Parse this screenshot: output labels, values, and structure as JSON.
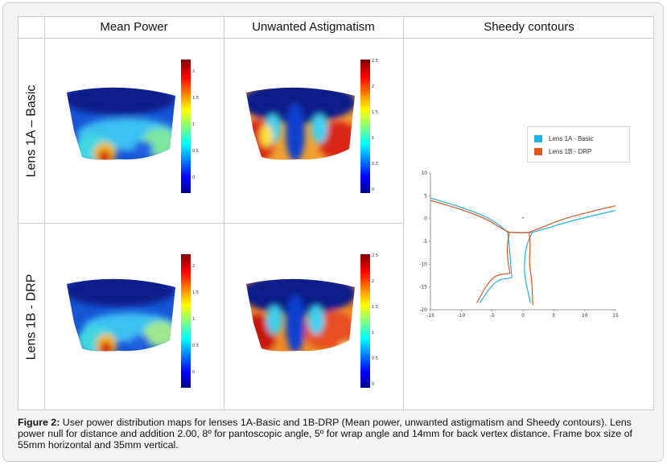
{
  "headers": {
    "col1": "Mean Power",
    "col2": "Unwanted Astigmatism",
    "col3": "Sheedy contours"
  },
  "rows": {
    "row1": "Lens 1A – Basic",
    "row2": "Lens 1B - DRP"
  },
  "colorbars": {
    "mp_1a": [
      "2",
      "1.5",
      "1",
      "0.5",
      "0"
    ],
    "ua_1a": [
      "2.5",
      "2",
      "1.5",
      "1",
      "0.5",
      "0"
    ],
    "mp_1b": [
      "2",
      "1.5",
      "1",
      "0.5",
      "0"
    ],
    "ua_1b": [
      "2.5",
      "2",
      "1.5",
      "1",
      "0.5",
      "0"
    ]
  },
  "legend": {
    "items": [
      {
        "label": "Lens 1A - Basic",
        "color": "#1fb2e8"
      },
      {
        "label": "Lens 1B - DRP",
        "color": "#e0561d"
      }
    ]
  },
  "chart_data": {
    "type": "line",
    "title": "Sheedy contours",
    "xlim": [
      -15,
      15
    ],
    "ylim": [
      -20,
      10
    ],
    "xticks": [
      "-15",
      "-10",
      "-5",
      "0",
      "5",
      "10",
      "15"
    ],
    "yticks": [
      "10",
      "5",
      "0",
      "-5",
      "-10",
      "-15",
      "-20"
    ],
    "series": [
      {
        "name": "Lens 1A - Basic",
        "color": "#1fb2e8",
        "curves": [
          [
            [
              -15,
              4.5
            ],
            [
              -10,
              2.5
            ],
            [
              -6,
              0.5
            ],
            [
              -3.5,
              -1.8
            ],
            [
              -2.5,
              -3
            ]
          ],
          [
            [
              15,
              1.8
            ],
            [
              10,
              0.2
            ],
            [
              6,
              -1.2
            ],
            [
              3,
              -2.5
            ],
            [
              1.5,
              -3
            ]
          ],
          [
            [
              -2.5,
              -3
            ],
            [
              0,
              -3.2
            ],
            [
              1.5,
              -3
            ]
          ],
          [
            [
              -2.5,
              -3
            ],
            [
              -2.2,
              -6
            ],
            [
              -2.0,
              -10
            ],
            [
              -1.8,
              -13
            ]
          ],
          [
            [
              1.5,
              -3
            ],
            [
              0.5,
              -6
            ],
            [
              0.2,
              -10
            ],
            [
              0.3,
              -13
            ],
            [
              1.2,
              -18.5
            ]
          ],
          [
            [
              -1.8,
              -13
            ],
            [
              -4.5,
              -13.5
            ],
            [
              -7,
              -18.5
            ]
          ]
        ]
      },
      {
        "name": "Lens 1B - DRP",
        "color": "#e0561d",
        "curves": [
          [
            [
              -15,
              4
            ],
            [
              -10,
              2
            ],
            [
              -6,
              0
            ],
            [
              -3.5,
              -2.2
            ],
            [
              -2.2,
              -3
            ]
          ],
          [
            [
              15,
              2.8
            ],
            [
              10,
              1.2
            ],
            [
              6,
              -0.3
            ],
            [
              3,
              -2
            ],
            [
              1,
              -3
            ]
          ],
          [
            [
              -2.2,
              -3
            ],
            [
              0,
              -3.1
            ],
            [
              1,
              -3
            ]
          ],
          [
            [
              -2.2,
              -3
            ],
            [
              -2.6,
              -6
            ],
            [
              -2.4,
              -10
            ],
            [
              -2.1,
              -12
            ]
          ],
          [
            [
              1,
              -3
            ],
            [
              1.2,
              -6
            ],
            [
              1.0,
              -10
            ],
            [
              1.4,
              -13
            ],
            [
              1.6,
              -19
            ]
          ],
          [
            [
              -2.1,
              -12
            ],
            [
              -5,
              -12.5
            ],
            [
              -7.5,
              -18.5
            ]
          ]
        ]
      }
    ]
  },
  "caption": {
    "label": "Figure 2:",
    "text": " User power distribution maps for lenses 1A-Basic and 1B-DRP (Mean power, unwanted astigmatism and Sheedy contours). Lens power null for distance and addition 2.00, 8º for pantoscopic angle, 5º for wrap angle and 14mm for back vertex distance. Frame box size of 55mm horizontal and 35mm vertical."
  }
}
